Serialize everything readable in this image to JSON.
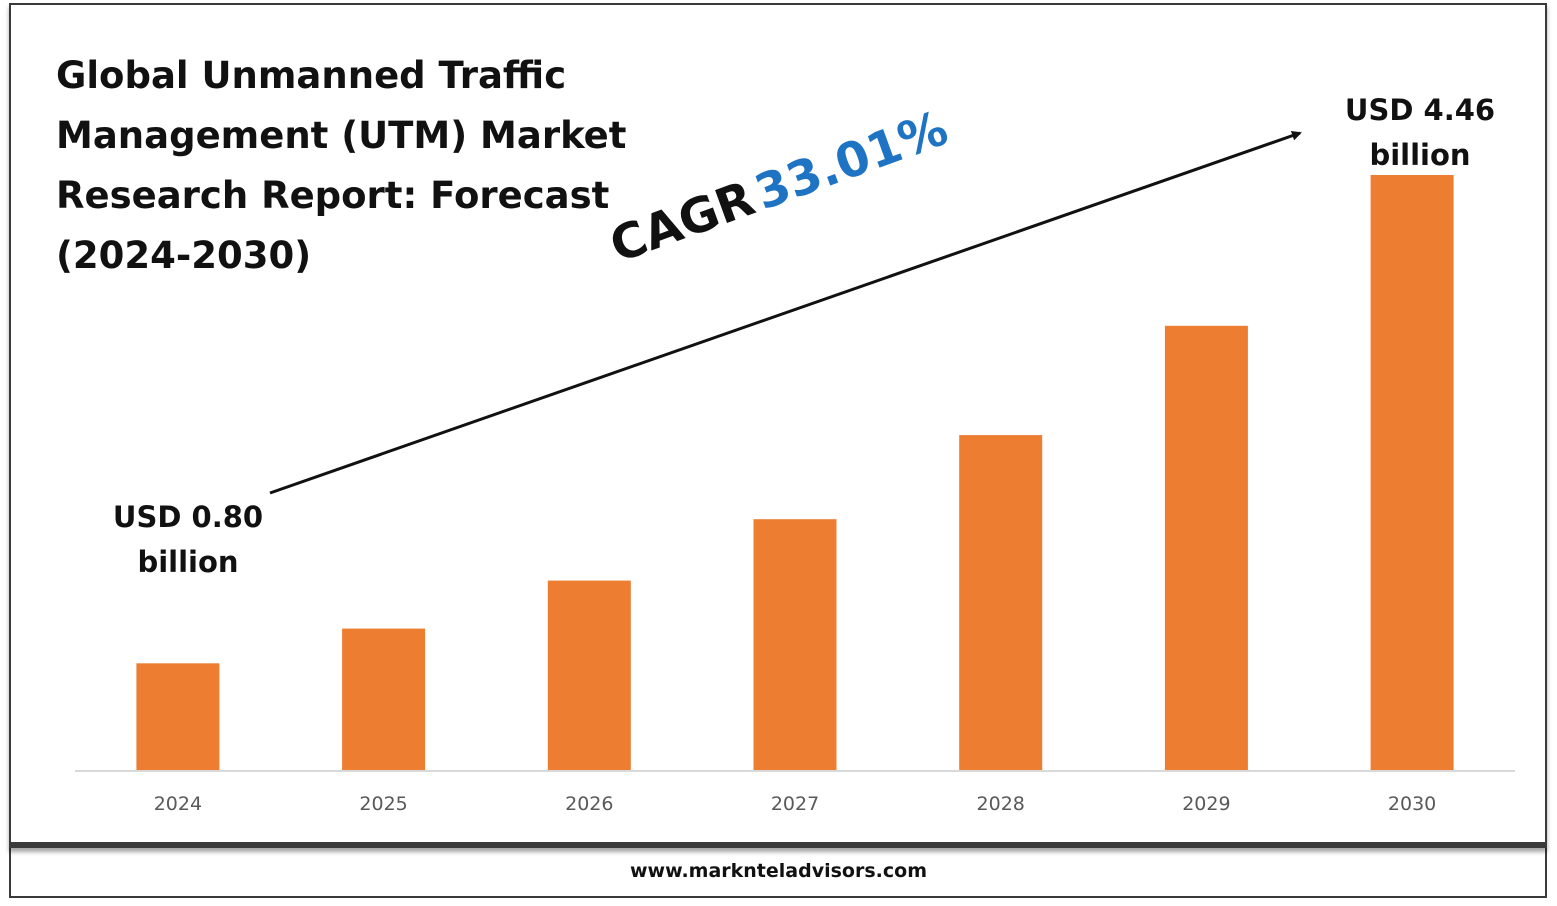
{
  "chart_data": {
    "type": "bar",
    "title": "Global Unmanned Traffic Management (UTM) Market Research Report: Forecast (2024-2030)",
    "categories": [
      "2024",
      "2025",
      "2026",
      "2027",
      "2028",
      "2029",
      "2030"
    ],
    "values": [
      0.8,
      1.06,
      1.42,
      1.88,
      2.51,
      3.33,
      4.46
    ],
    "ylim": [
      0,
      5.0
    ],
    "xlabel": "",
    "ylabel": "",
    "grid": false,
    "bar_color": "#ed7d31",
    "annotations": {
      "first_value": "USD 0.80 billion",
      "last_value": "USD 4.46 billion",
      "cagr_label": "CAGR",
      "cagr_value": "33.01%"
    }
  },
  "colors": {
    "bar": "#ed7d31",
    "cagr_value": "#1f73c3",
    "axis": "#d9d9d9"
  },
  "footer": {
    "website": "www.marknteladvisors.com"
  }
}
